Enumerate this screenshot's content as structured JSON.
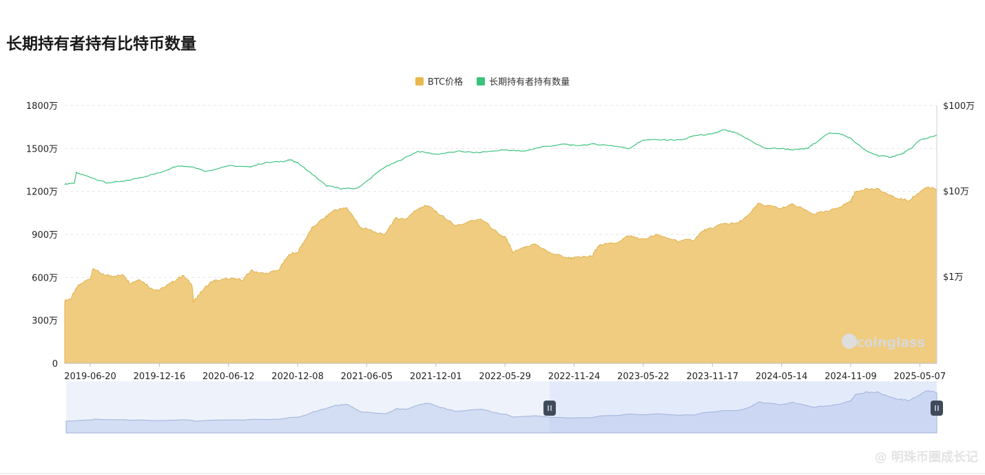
{
  "page": {
    "title": "长期持有者持有比特币数量"
  },
  "legend": [
    {
      "label": "BTC价格",
      "color": "#e8b84f"
    },
    {
      "label": "长期持有者持有数量",
      "color": "#3bc37c"
    }
  ],
  "watermark": {
    "brand": "coinglass",
    "footer": "@ 明珠币圈成长记"
  },
  "chart_data": {
    "type": "area",
    "left_axis": {
      "name": "长期持有者持有数量",
      "ticks": [
        "0",
        "300万",
        "600万",
        "900万",
        "1200万",
        "1500万",
        "1800万"
      ],
      "range": [
        0,
        18000000
      ]
    },
    "right_axis": {
      "name": "BTC价格",
      "scale": "log",
      "ticks": [
        "$1万",
        "$10万",
        "$100万"
      ],
      "range": [
        10000,
        1000000
      ]
    },
    "x_ticks": [
      "2019-06-20",
      "2019-12-16",
      "2020-06-12",
      "2020-12-08",
      "2021-06-05",
      "2021-12-01",
      "2022-05-29",
      "2022-11-24",
      "2023-05-22",
      "2023-11-17",
      "2024-05-14",
      "2024-11-09",
      "2025-05-07"
    ],
    "x_range": [
      "2019-04-15",
      "2025-06-20"
    ],
    "grid": true,
    "series": [
      {
        "name": "长期持有者持有数量",
        "type": "line",
        "color": "#3bc37c",
        "points": [
          [
            "2019-04-15",
            12500000
          ],
          [
            "2019-05-10",
            12600000
          ],
          [
            "2019-05-15",
            13300000
          ],
          [
            "2019-06-20",
            13000000
          ],
          [
            "2019-08-01",
            12600000
          ],
          [
            "2019-09-15",
            12700000
          ],
          [
            "2019-11-01",
            13000000
          ],
          [
            "2019-12-16",
            13300000
          ],
          [
            "2020-02-01",
            13800000
          ],
          [
            "2020-03-15",
            13700000
          ],
          [
            "2020-04-15",
            13400000
          ],
          [
            "2020-06-12",
            13800000
          ],
          [
            "2020-08-01",
            13700000
          ],
          [
            "2020-09-15",
            14000000
          ],
          [
            "2020-11-01",
            14100000
          ],
          [
            "2020-11-20",
            14200000
          ],
          [
            "2020-12-08",
            14000000
          ],
          [
            "2021-01-15",
            13200000
          ],
          [
            "2021-02-20",
            12400000
          ],
          [
            "2021-04-01",
            12200000
          ],
          [
            "2021-05-10",
            12200000
          ],
          [
            "2021-06-05",
            12700000
          ],
          [
            "2021-07-15",
            13600000
          ],
          [
            "2021-09-01",
            14200000
          ],
          [
            "2021-10-15",
            14800000
          ],
          [
            "2021-12-01",
            14600000
          ],
          [
            "2022-02-01",
            14800000
          ],
          [
            "2022-03-15",
            14700000
          ],
          [
            "2022-05-29",
            14900000
          ],
          [
            "2022-07-15",
            14800000
          ],
          [
            "2022-09-01",
            15100000
          ],
          [
            "2022-11-01",
            15300000
          ],
          [
            "2022-11-24",
            15200000
          ],
          [
            "2023-01-15",
            15300000
          ],
          [
            "2023-03-01",
            15200000
          ],
          [
            "2023-04-15",
            15000000
          ],
          [
            "2023-05-22",
            15600000
          ],
          [
            "2023-07-15",
            15600000
          ],
          [
            "2023-09-01",
            15600000
          ],
          [
            "2023-10-01",
            15900000
          ],
          [
            "2023-11-17",
            16000000
          ],
          [
            "2023-12-15",
            16300000
          ],
          [
            "2024-01-15",
            16100000
          ],
          [
            "2024-02-20",
            15600000
          ],
          [
            "2024-04-01",
            15000000
          ],
          [
            "2024-05-14",
            15000000
          ],
          [
            "2024-06-15",
            14900000
          ],
          [
            "2024-07-20",
            15000000
          ],
          [
            "2024-08-20",
            15600000
          ],
          [
            "2024-09-15",
            16100000
          ],
          [
            "2024-10-15",
            16000000
          ],
          [
            "2024-11-09",
            15700000
          ],
          [
            "2024-12-20",
            14800000
          ],
          [
            "2025-01-20",
            14500000
          ],
          [
            "2025-02-20",
            14400000
          ],
          [
            "2025-03-20",
            14600000
          ],
          [
            "2025-04-15",
            15000000
          ],
          [
            "2025-05-07",
            15600000
          ],
          [
            "2025-06-20",
            15900000
          ]
        ]
      },
      {
        "name": "BTC价格",
        "type": "area",
        "color": "#e8b84f",
        "points": [
          [
            "2019-04-15",
            5200
          ],
          [
            "2019-05-01",
            5500
          ],
          [
            "2019-05-20",
            7800
          ],
          [
            "2019-06-20",
            9500
          ],
          [
            "2019-06-28",
            12500
          ],
          [
            "2019-07-20",
            10500
          ],
          [
            "2019-08-15",
            10200
          ],
          [
            "2019-09-15",
            10300
          ],
          [
            "2019-10-01",
            8300
          ],
          [
            "2019-10-26",
            9300
          ],
          [
            "2019-11-25",
            7200
          ],
          [
            "2019-12-16",
            6900
          ],
          [
            "2020-01-20",
            8600
          ],
          [
            "2020-02-14",
            10300
          ],
          [
            "2020-03-10",
            7900
          ],
          [
            "2020-03-13",
            5000
          ],
          [
            "2020-04-01",
            6500
          ],
          [
            "2020-05-01",
            8800
          ],
          [
            "2020-06-12",
            9400
          ],
          [
            "2020-07-20",
            9200
          ],
          [
            "2020-08-10",
            11700
          ],
          [
            "2020-09-15",
            10700
          ],
          [
            "2020-10-20",
            11900
          ],
          [
            "2020-11-20",
            18500
          ],
          [
            "2020-12-08",
            19000
          ],
          [
            "2020-12-28",
            27000
          ],
          [
            "2021-01-15",
            37000
          ],
          [
            "2021-02-20",
            50000
          ],
          [
            "2021-03-13",
            60000
          ],
          [
            "2021-04-14",
            63000
          ],
          [
            "2021-05-19",
            37000
          ],
          [
            "2021-06-05",
            36000
          ],
          [
            "2021-07-20",
            30000
          ],
          [
            "2021-08-20",
            48000
          ],
          [
            "2021-09-15",
            47000
          ],
          [
            "2021-10-20",
            64000
          ],
          [
            "2021-11-10",
            68000
          ],
          [
            "2021-12-01",
            57000
          ],
          [
            "2022-01-20",
            39000
          ],
          [
            "2022-03-28",
            47000
          ],
          [
            "2022-05-15",
            30000
          ],
          [
            "2022-05-29",
            29000
          ],
          [
            "2022-06-18",
            19000
          ],
          [
            "2022-08-15",
            24000
          ],
          [
            "2022-09-20",
            19000
          ],
          [
            "2022-11-08",
            16500
          ],
          [
            "2022-11-24",
            16500
          ],
          [
            "2023-01-10",
            17200
          ],
          [
            "2023-01-25",
            23000
          ],
          [
            "2023-03-15",
            25000
          ],
          [
            "2023-04-15",
            30000
          ],
          [
            "2023-05-22",
            27000
          ],
          [
            "2023-06-25",
            30500
          ],
          [
            "2023-08-20",
            26000
          ],
          [
            "2023-10-01",
            27000
          ],
          [
            "2023-10-25",
            34500
          ],
          [
            "2023-11-17",
            36500
          ],
          [
            "2023-12-15",
            42000
          ],
          [
            "2024-01-20",
            41500
          ],
          [
            "2024-02-20",
            52000
          ],
          [
            "2024-03-14",
            71000
          ],
          [
            "2024-05-14",
            62000
          ],
          [
            "2024-06-10",
            69500
          ],
          [
            "2024-08-05",
            54000
          ],
          [
            "2024-09-15",
            58000
          ],
          [
            "2024-10-20",
            68000
          ],
          [
            "2024-11-09",
            76000
          ],
          [
            "2024-11-22",
            98000
          ],
          [
            "2024-12-17",
            106000
          ],
          [
            "2025-01-20",
            104000
          ],
          [
            "2025-02-28",
            84000
          ],
          [
            "2025-04-08",
            77000
          ],
          [
            "2025-05-07",
            96000
          ],
          [
            "2025-05-22",
            111000
          ],
          [
            "2025-06-20",
            104000
          ]
        ]
      }
    ],
    "navigator": {
      "selection": [
        "2022-09-20",
        "2025-06-20"
      ]
    }
  }
}
